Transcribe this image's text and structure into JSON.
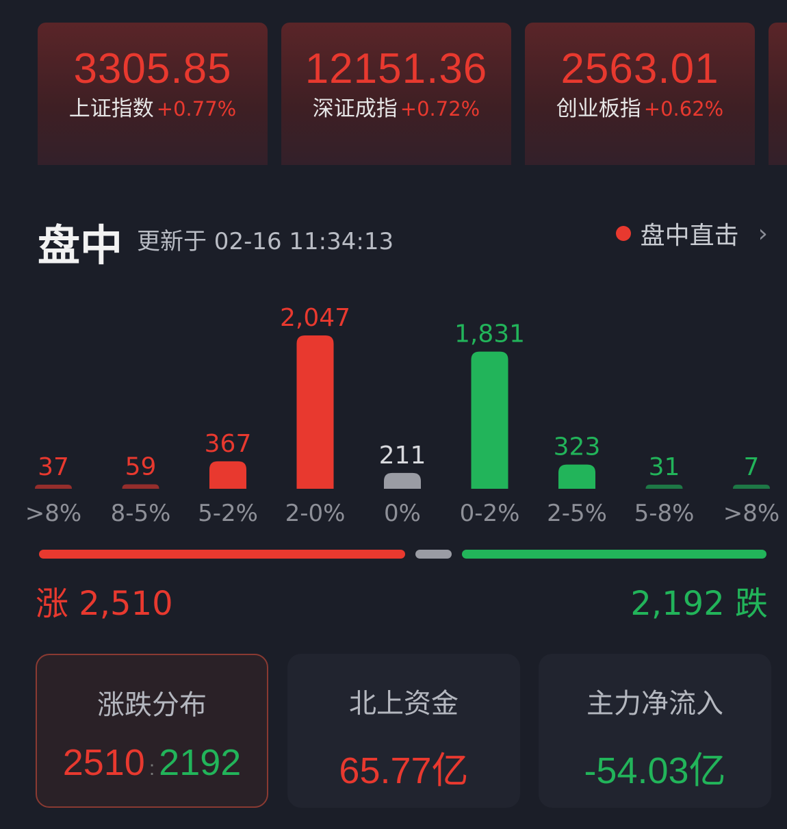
{
  "indices": [
    {
      "value": "3305.85",
      "name": "上证指数",
      "change": "+0.77%"
    },
    {
      "value": "12151.36",
      "name": "深证成指",
      "change": "+0.72%"
    },
    {
      "value": "2563.01",
      "name": "创业板指",
      "change": "+0.62%"
    }
  ],
  "header": {
    "title": "盘中",
    "updated": "更新于 02-16 11:34:13",
    "live_label": "盘中直击",
    "chevron": "›"
  },
  "colors": {
    "up": "#e8392f",
    "down": "#22b45a",
    "flat": "#9a9ca4"
  },
  "chart_data": {
    "type": "bar",
    "categories": [
      ">8%",
      "8-5%",
      "5-2%",
      "2-0%",
      "0%",
      "0-2%",
      "2-5%",
      "5-8%",
      ">8%"
    ],
    "values": [
      37,
      59,
      367,
      2047,
      211,
      1831,
      323,
      31,
      7
    ],
    "value_labels": [
      "37",
      "59",
      "367",
      "2,047",
      "211",
      "1,831",
      "323",
      "31",
      "7"
    ],
    "directions": [
      "up",
      "up",
      "up",
      "up",
      "flat",
      "down",
      "down",
      "down",
      "down"
    ]
  },
  "summary": {
    "up_label": "涨 2,510",
    "down_label": "2,192 跌",
    "up": 2510,
    "flat": 211,
    "down": 2192
  },
  "cards": [
    {
      "title": "涨跌分布",
      "up": "2510",
      "sep": ":",
      "down": "2192"
    },
    {
      "title": "北上资金",
      "value": "65.77亿"
    },
    {
      "title": "主力净流入",
      "value": "-54.03亿"
    }
  ]
}
